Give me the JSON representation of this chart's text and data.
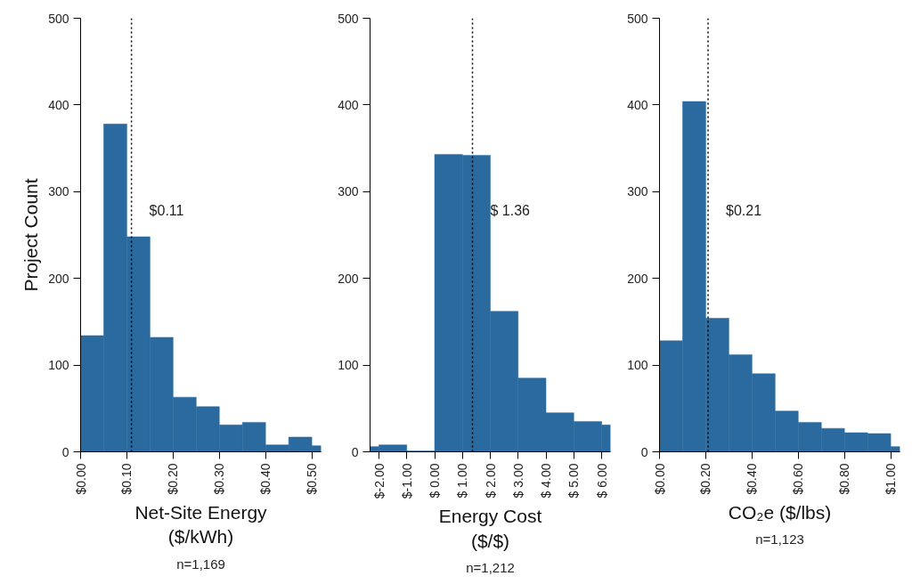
{
  "chart_data": [
    {
      "type": "histogram",
      "xlabel": "Net-Site Energy\n($/kWh)",
      "ylabel": "Project Count",
      "color": "#2b6a9e",
      "bins": [
        0,
        0.05,
        0.1,
        0.15,
        0.2,
        0.25,
        0.3,
        0.35,
        0.4,
        0.45,
        0.5,
        0.52
      ],
      "values": [
        134,
        378,
        248,
        132,
        63,
        52,
        31,
        34,
        8,
        17,
        7
      ],
      "xlim": [
        0,
        0.52
      ],
      "ylim": [
        0,
        500
      ],
      "xticks": [
        {
          "value": 0,
          "label": "$0.00"
        },
        {
          "value": 0.1,
          "label": "$0.10"
        },
        {
          "value": 0.2,
          "label": "$0.20"
        },
        {
          "value": 0.3,
          "label": "$0.30"
        },
        {
          "value": 0.4,
          "label": "$0.40"
        },
        {
          "value": 0.5,
          "label": "$0.50"
        }
      ],
      "yticks": [
        0,
        100,
        200,
        300,
        400,
        500
      ],
      "ref_lines": [
        {
          "axis": "x",
          "value": 0.11,
          "label": "$0.11",
          "line_style": "dotted",
          "color": "#000000"
        }
      ],
      "annotations": [
        "n=1,169"
      ],
      "grid": false
    },
    {
      "type": "histogram",
      "xlabel": "Energy Cost\n($/$)",
      "color": "#2b6a9e",
      "bins": [
        -2.32,
        -2,
        -1,
        0,
        1,
        2,
        3,
        4,
        5,
        6,
        6.32
      ],
      "values": [
        6,
        8,
        1,
        343,
        342,
        162,
        85,
        45,
        35,
        31
      ],
      "xlim": [
        -2.32,
        6.32
      ],
      "ylim": [
        0,
        500
      ],
      "xticks": [
        {
          "value": -2,
          "label": "$-2.00"
        },
        {
          "value": -1,
          "label": "$-1.00"
        },
        {
          "value": 0,
          "label": "$ 0.00"
        },
        {
          "value": 1,
          "label": "$ 1.00"
        },
        {
          "value": 2,
          "label": "$ 2.00"
        },
        {
          "value": 3,
          "label": "$ 3.00"
        },
        {
          "value": 4,
          "label": "$ 4.00"
        },
        {
          "value": 5,
          "label": "$ 5.00"
        },
        {
          "value": 6,
          "label": "$ 6.00"
        }
      ],
      "yticks": [
        0,
        100,
        200,
        300,
        400,
        500
      ],
      "ref_lines": [
        {
          "axis": "x",
          "value": 1.36,
          "label": "$ 1.36",
          "line_style": "dotted",
          "color": "#000000"
        }
      ],
      "annotations": [
        "n=1,212"
      ],
      "grid": false
    },
    {
      "type": "histogram",
      "xlabel": "CO₂e ($/lbs)",
      "color": "#2b6a9e",
      "bins": [
        0,
        0.1,
        0.2,
        0.3,
        0.4,
        0.5,
        0.6,
        0.7,
        0.8,
        0.9,
        1.0,
        1.04
      ],
      "values": [
        128,
        404,
        154,
        112,
        90,
        47,
        34,
        27,
        22,
        21,
        6
      ],
      "xlim": [
        0,
        1.04
      ],
      "ylim": [
        0,
        500
      ],
      "xticks": [
        {
          "value": 0,
          "label": "$0.00"
        },
        {
          "value": 0.2,
          "label": "$0.20"
        },
        {
          "value": 0.4,
          "label": "$0.40"
        },
        {
          "value": 0.6,
          "label": "$0.60"
        },
        {
          "value": 0.8,
          "label": "$0.80"
        },
        {
          "value": 1.0,
          "label": "$1.00"
        }
      ],
      "yticks": [
        0,
        100,
        200,
        300,
        400,
        500
      ],
      "ref_lines": [
        {
          "axis": "x",
          "value": 0.21,
          "label": "$0.21",
          "line_style": "dotted",
          "color": "#000000"
        }
      ],
      "annotations": [
        "n=1,123"
      ],
      "grid": false
    }
  ]
}
